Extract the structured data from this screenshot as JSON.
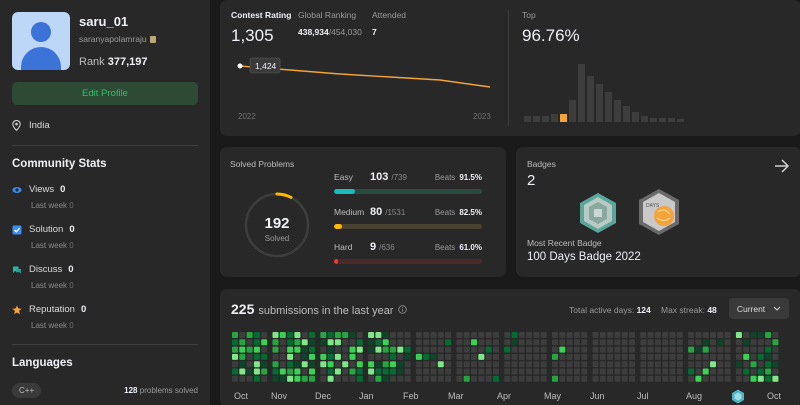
{
  "profile": {
    "username": "saru_01",
    "handle": "saranyapolamraju",
    "rank_label": "Rank",
    "rank_value": "377,197",
    "edit_label": "Edit Profile",
    "location": "India"
  },
  "community": {
    "title": "Community Stats",
    "items": [
      {
        "label": "Views",
        "value": "0",
        "sub_label": "Last week",
        "sub_value": "0",
        "icon": "eye-icon",
        "color": "#3b8cf7"
      },
      {
        "label": "Solution",
        "value": "0",
        "sub_label": "Last week",
        "sub_value": "0",
        "icon": "solution-check-icon",
        "color": "#3b8cf7"
      },
      {
        "label": "Discuss",
        "value": "0",
        "sub_label": "Last week",
        "sub_value": "0",
        "icon": "discuss-bubble-icon",
        "color": "#2bb6a3"
      },
      {
        "label": "Reputation",
        "value": "0",
        "sub_label": "Last week",
        "sub_value": "0",
        "icon": "star-icon",
        "color": "#f2a33a"
      }
    ]
  },
  "languages": {
    "title": "Languages",
    "items": [
      {
        "name": "C++",
        "count": "128",
        "suffix": "problems solved"
      }
    ]
  },
  "contest": {
    "rating_label": "Contest Rating",
    "rating_value": "1,305",
    "global_label": "Global Ranking",
    "global_value": "438,934",
    "global_total": "/454,030",
    "attended_label": "Attended",
    "attended_value": "7",
    "tooltip": "1,424",
    "year_start": "2022",
    "year_end": "2023",
    "top_label": "Top",
    "top_value": "96.76%",
    "line_color": "#f2a33a"
  },
  "solved": {
    "title": "Solved Problems",
    "total": "192",
    "total_label": "Solved",
    "beats_label": "Beats",
    "rows": [
      {
        "name": "Easy",
        "count": "103",
        "total": "/739",
        "beats": "91.5%",
        "color": "#1cbaba",
        "track": "#2a4a3f",
        "fraction": 0.139
      },
      {
        "name": "Medium",
        "count": "80",
        "total": "/1531",
        "beats": "82.5%",
        "color": "#ffb700",
        "track": "#4a4230",
        "fraction": 0.052
      },
      {
        "name": "Hard",
        "count": "9",
        "total": "/636",
        "beats": "61.0%",
        "color": "#f63737",
        "track": "#4a2a2a",
        "fraction": 0.014
      }
    ]
  },
  "badges": {
    "title": "Badges",
    "count": "2",
    "recent_label": "Most Recent Badge",
    "recent_name": "100 Days Badge 2022",
    "badge1_text": "",
    "badge2_text": "DAYS"
  },
  "submissions": {
    "count": "225",
    "label": "submissions in the last year",
    "active_label": "Total active days:",
    "active_value": "124",
    "streak_label": "Max streak:",
    "streak_value": "48",
    "dropdown_value": "Current",
    "months": [
      "Oct",
      "Nov",
      "Dec",
      "Jan",
      "Feb",
      "Mar",
      "Apr",
      "May",
      "Jun",
      "Jul",
      "Aug",
      "Sep",
      "Oct"
    ]
  }
}
